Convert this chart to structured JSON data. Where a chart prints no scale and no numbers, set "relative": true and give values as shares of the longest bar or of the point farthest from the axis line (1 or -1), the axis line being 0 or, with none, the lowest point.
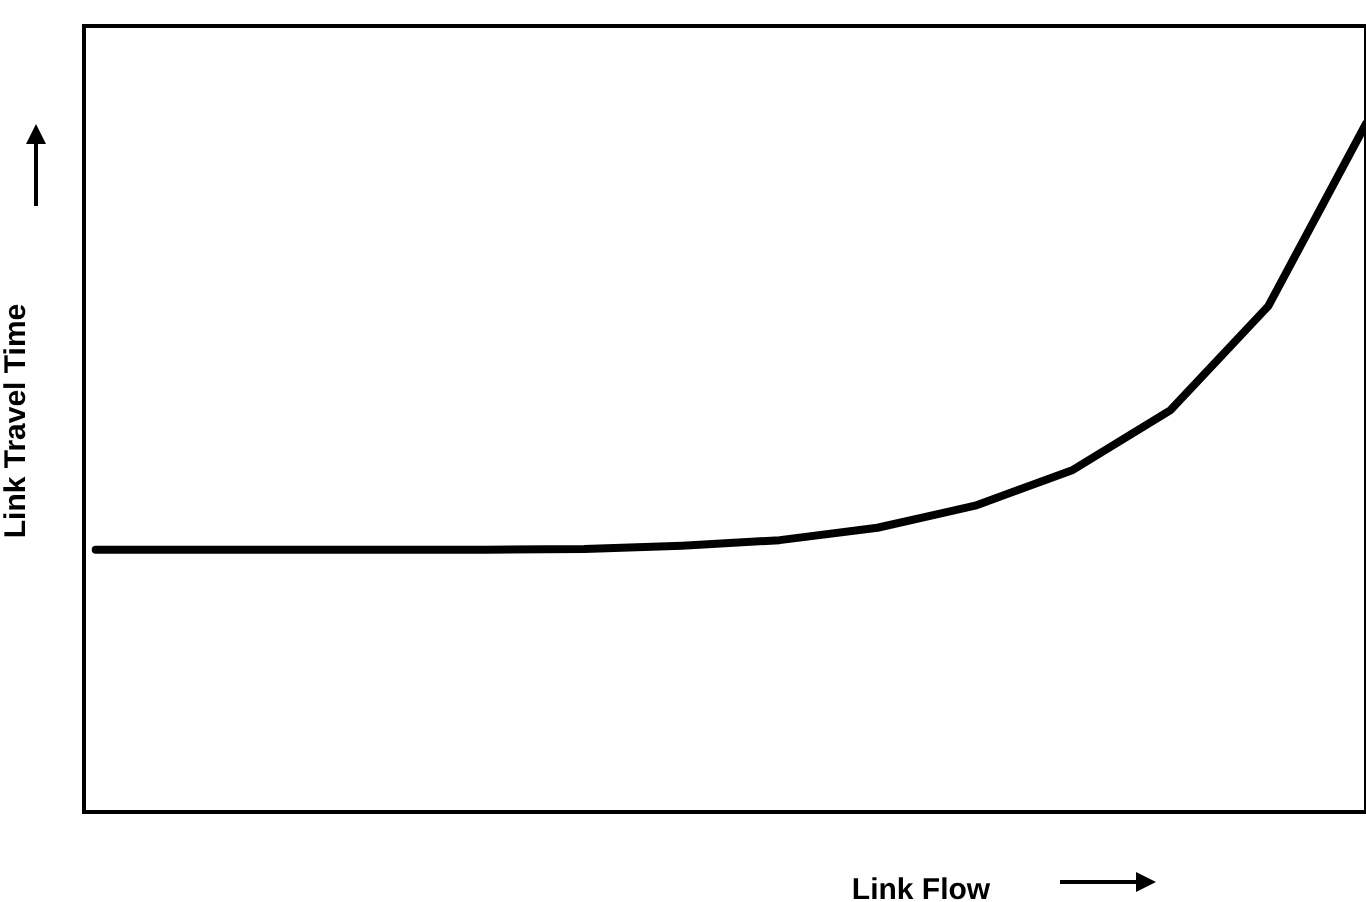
{
  "chart_data": {
    "type": "line",
    "xlabel": "Link Flow",
    "ylabel": "Link Travel Time",
    "relative": true,
    "color": "#000000",
    "categories": [
      null,
      null,
      null,
      null,
      null,
      null,
      null,
      null,
      null,
      null,
      null,
      null,
      null,
      null
    ],
    "values": [
      0.381,
      0.381,
      0.381,
      0.381,
      0.381,
      0.382,
      0.387,
      0.395,
      0.413,
      0.445,
      0.497,
      0.584,
      0.735,
      1
    ]
  }
}
